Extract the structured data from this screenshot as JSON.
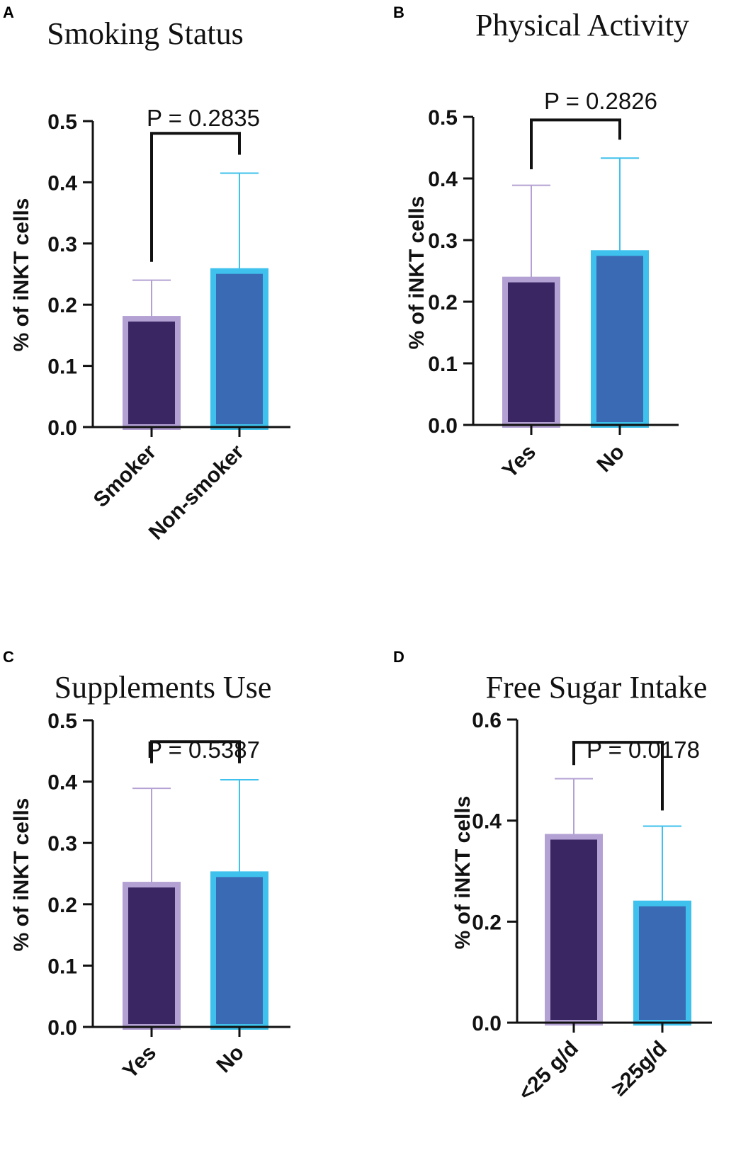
{
  "colors": {
    "bar1_fill": "#3a2663",
    "bar1_edge": "#b3a1d3",
    "bar2_fill": "#3b6ab4",
    "bar2_edge": "#3ec1ec",
    "axis": "#111111"
  },
  "chart_data": [
    {
      "type": "bar",
      "panel": "A",
      "title": "Smoking Status",
      "ylabel": "% of iNKT cells",
      "xlabel": "",
      "categories": [
        "Smoker",
        "Non-smoker"
      ],
      "values": [
        0.177,
        0.255
      ],
      "errors_upper": [
        0.24,
        0.415
      ],
      "ylim": [
        0,
        0.5
      ],
      "yticks": [
        "0.0",
        "0.1",
        "0.2",
        "0.3",
        "0.4",
        "0.5"
      ],
      "p_value": "P = 0.2835",
      "bracket_top": 0.48,
      "bracket_left_end": 0.27,
      "bracket_right_end": 0.445
    },
    {
      "type": "bar",
      "panel": "B",
      "title": "Physical Activity",
      "ylabel": "% of iNKT cells",
      "xlabel": "",
      "categories": [
        "Yes",
        "No"
      ],
      "values": [
        0.236,
        0.279
      ],
      "errors_upper": [
        0.389,
        0.433
      ],
      "ylim": [
        0,
        0.5
      ],
      "yticks": [
        "0.0",
        "0.1",
        "0.2",
        "0.3",
        "0.4",
        "0.5"
      ],
      "p_value": "P = 0.2826",
      "bracket_top": 0.495,
      "bracket_left_end": 0.415,
      "bracket_right_end": 0.463
    },
    {
      "type": "bar",
      "panel": "C",
      "title": "Supplements Use",
      "ylabel": "% of iNKT cells",
      "xlabel": "",
      "categories": [
        "Yes",
        "No"
      ],
      "values": [
        0.232,
        0.249
      ],
      "errors_upper": [
        0.389,
        0.403
      ],
      "ylim": [
        0,
        0.5
      ],
      "yticks": [
        "0.0",
        "0.1",
        "0.2",
        "0.3",
        "0.4",
        "0.5"
      ],
      "p_value": "P = 0.5387",
      "bracket_top": 0.465,
      "bracket_left_end": 0.43,
      "bracket_right_end": 0.43
    },
    {
      "type": "bar",
      "panel": "D",
      "title": "Free Sugar Intake",
      "ylabel": "% of iNKT cells",
      "xlabel": "",
      "categories": [
        "<25 g/d",
        "≥25g/d"
      ],
      "values": [
        0.368,
        0.236
      ],
      "errors_upper": [
        0.483,
        0.389
      ],
      "ylim": [
        0,
        0.6
      ],
      "yticks": [
        "0.0",
        "0.2",
        "0.4",
        "0.6"
      ],
      "p_value": "P = 0.0178",
      "bracket_top": 0.555,
      "bracket_left_end": 0.51,
      "bracket_right_end": 0.42
    }
  ]
}
